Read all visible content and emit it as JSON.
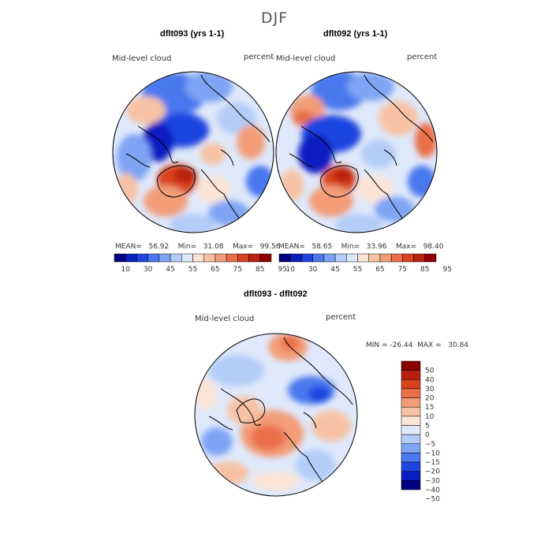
{
  "page_title": "DJF",
  "palette": {
    "abs": [
      "#000080",
      "#0a1fc0",
      "#1f45e0",
      "#4a78ee",
      "#7ea4f4",
      "#b3ccf8",
      "#dfe9fb",
      "#fbe4d6",
      "#f7c2a4",
      "#f29d78",
      "#ea6f48",
      "#d8421f",
      "#b8200f",
      "#8c0000"
    ],
    "diff": [
      "#8c0000",
      "#b8200f",
      "#d8421f",
      "#ea6f48",
      "#f29d78",
      "#f7c2a4",
      "#fbe4d6",
      "#dfe9fb",
      "#b3ccf8",
      "#7ea4f4",
      "#4a78ee",
      "#1f45e0",
      "#0a1fc0",
      "#000080"
    ]
  },
  "panels": [
    {
      "title": "dflt093 (yrs 1-1)",
      "left_label": "Mid-level cloud",
      "right_label": "percent",
      "stats": "MEAN=   56.92    Min=   31.08    Max=   99.56",
      "colorbar_ticks": [
        "10",
        "30",
        "45",
        "55",
        "65",
        "75",
        "85",
        "95"
      ]
    },
    {
      "title": "dflt092 (yrs 1-1)",
      "left_label": "Mid-level cloud",
      "right_label": "percent",
      "stats": "MEAN=   58.65    Min=   33.96    Max=   98.40",
      "colorbar_ticks": [
        "10",
        "30",
        "45",
        "55",
        "65",
        "75",
        "85",
        "95"
      ]
    }
  ],
  "difference": {
    "title": "dflt093 - dflt092",
    "left_label": "Mid-level cloud",
    "right_label": "percent",
    "minmax": "MIN = -26.44  MAX =   30.84",
    "colorbar_ticks": [
      "50",
      "40",
      "30",
      "20",
      "15",
      "10",
      "5",
      "0",
      "−5",
      "−10",
      "−15",
      "−20",
      "−30",
      "−40",
      "−50"
    ]
  }
}
